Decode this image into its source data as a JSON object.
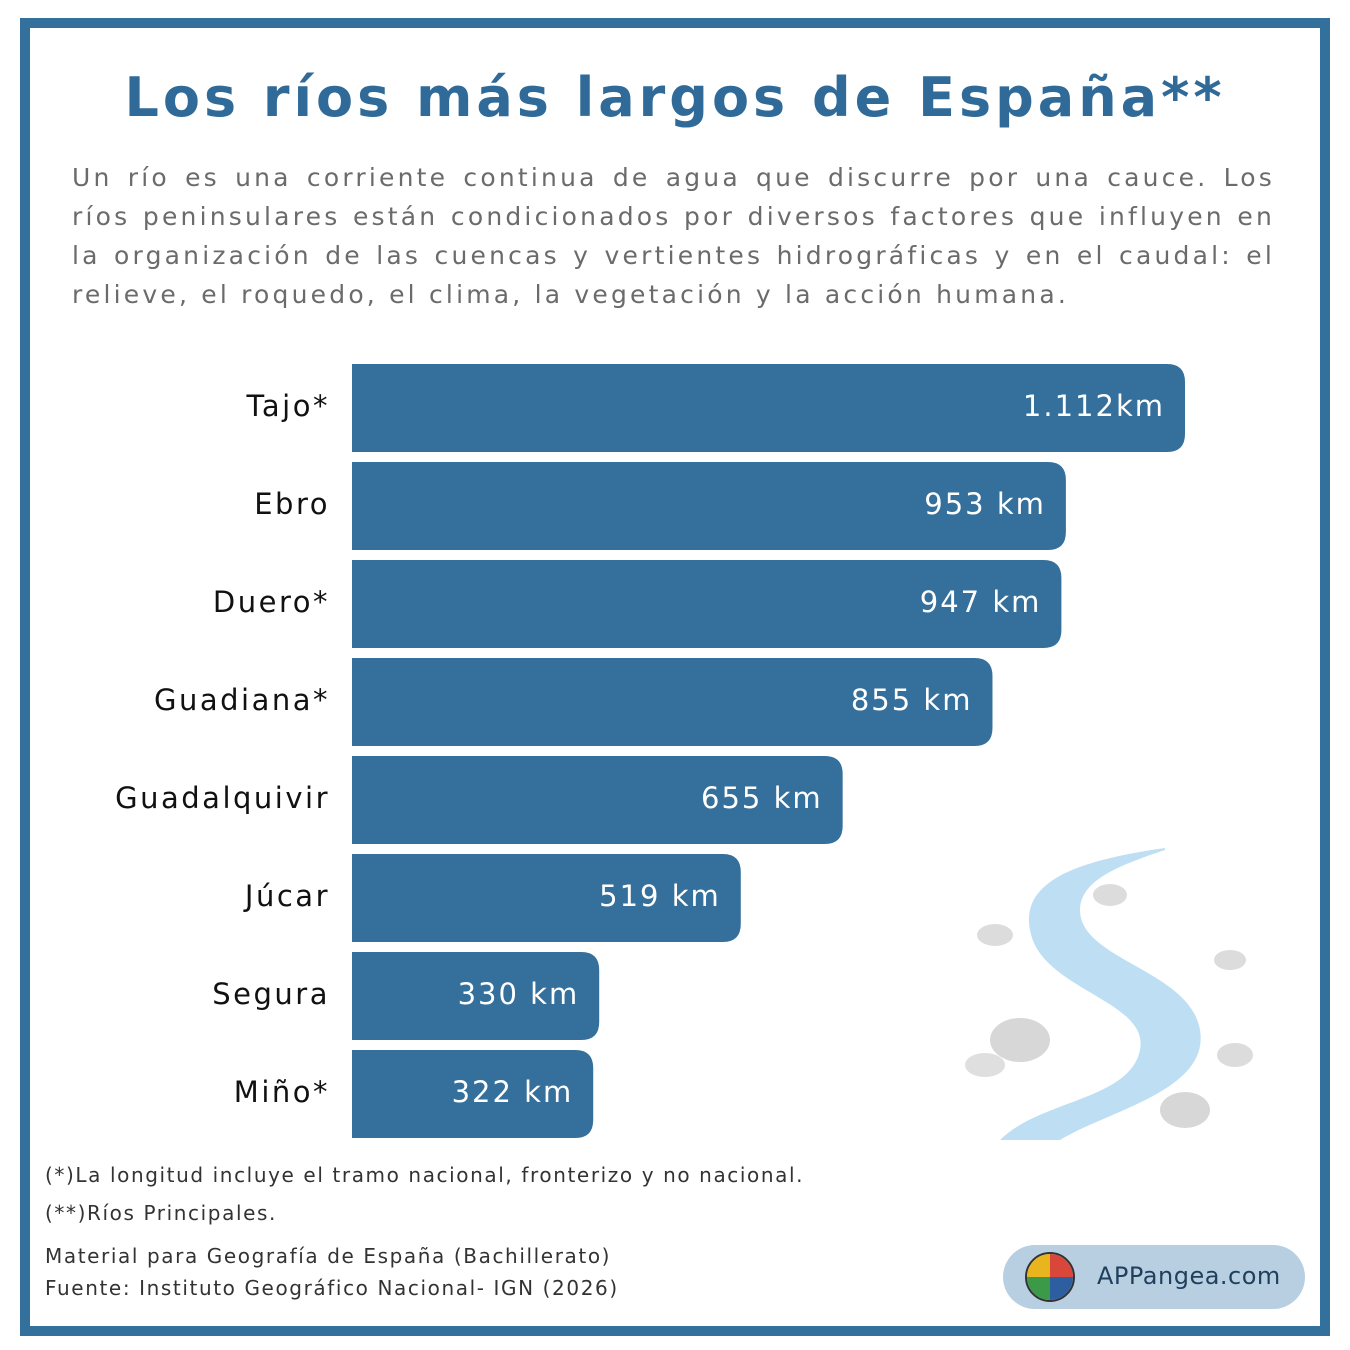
{
  "chart_data": {
    "type": "bar",
    "orientation": "horizontal",
    "title": "Los ríos más largos de España**",
    "subtitle": "Un río es una corriente continua de agua que discurre por una cauce. Los ríos peninsulares están condicionados por diversos factores que influyen en la organización de las cuencas y vertientes hidrográficas y en el caudal: el relieve, el roquedo, el clima, la vegetación y la acción humana.",
    "categories": [
      "Tajo*",
      "Ebro",
      "Duero*",
      "Guadiana*",
      "Guadalquivir",
      "Júcar",
      "Segura",
      "Miño*"
    ],
    "values": [
      1112,
      953,
      947,
      855,
      655,
      519,
      330,
      322
    ],
    "value_labels": [
      "1.112km",
      "953 km",
      "947 km",
      "855 km",
      "655 km",
      "519 km",
      "330 km",
      "322 km"
    ],
    "color": "#35709c"
  },
  "footnotes": [
    "(*)La longitud incluye el tramo nacional, fronterizo y no nacional.",
    "(**)Ríos Principales."
  ],
  "footer": [
    "Material para Geografía de España (Bachillerato)",
    "Fuente: Instituto Geográfico Nacional- IGN (2026)"
  ],
  "brand": "APPangea.com"
}
